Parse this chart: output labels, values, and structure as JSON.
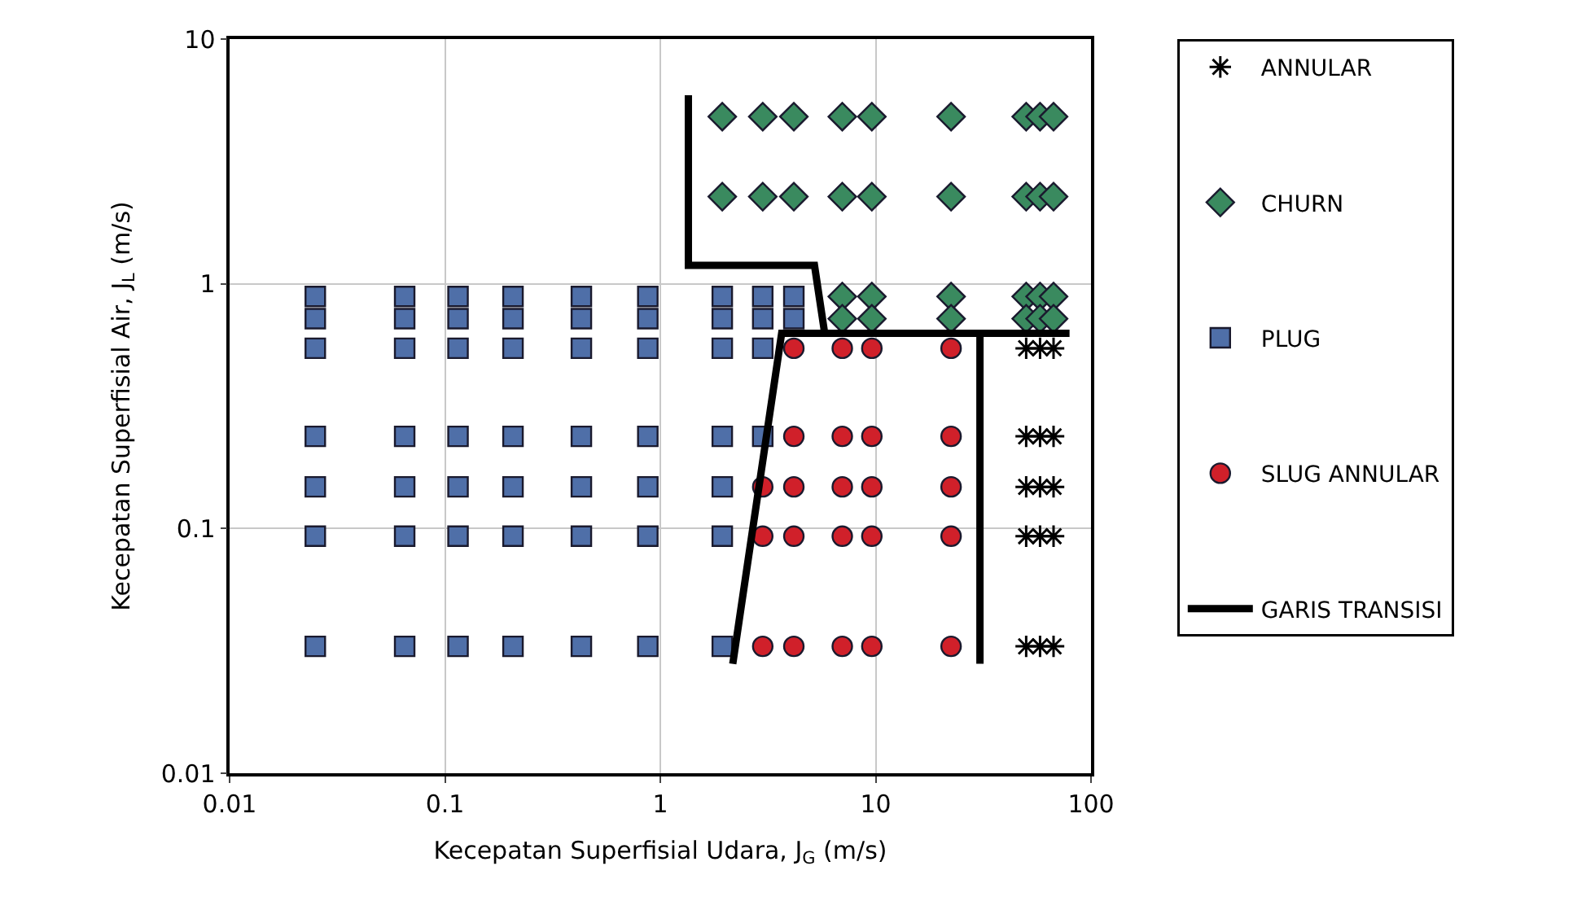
{
  "chart_data": {
    "type": "scatter",
    "xlabel": "Kecepatan Superfisial Udara, J$_{G}$ (m/s)",
    "ylabel": "Kecepatan Superfisial Air, J$_{L}$ (m/s)",
    "log": "xy",
    "grid": true,
    "legend": "right",
    "xlim": [
      0.01,
      100
    ],
    "xticks": [
      0.01,
      0.1,
      1,
      10,
      100
    ],
    "ylim": [
      0.01,
      10
    ],
    "yticks": [
      0.01,
      0.1,
      1,
      10
    ],
    "series": [
      {
        "name": "ANNULAR",
        "color": "#000000",
        "marker": "cross",
        "x": [
          50,
          58,
          67,
          50,
          58,
          67,
          50,
          58,
          67,
          50,
          58,
          67,
          50,
          58,
          67
        ],
        "values": [
          0.545,
          0.545,
          0.545,
          0.238,
          0.238,
          0.238,
          0.148,
          0.148,
          0.148,
          0.093,
          0.093,
          0.093,
          0.033,
          0.033,
          0.033
        ]
      },
      {
        "name": "CHURN",
        "color": "#3a8a5f",
        "marker": "diamond",
        "x": [
          1.94,
          2.99,
          4.17,
          7,
          9.6,
          22.4,
          50,
          58,
          67,
          1.94,
          2.99,
          4.17,
          7,
          9.6,
          22.4,
          50,
          58,
          67,
          7,
          9.6,
          22.4,
          50,
          58,
          67,
          7,
          9.6,
          22.4,
          50,
          58,
          67
        ],
        "values": [
          4.82,
          4.82,
          4.82,
          4.82,
          4.82,
          4.82,
          4.82,
          4.82,
          4.82,
          2.27,
          2.27,
          2.27,
          2.27,
          2.27,
          2.27,
          2.27,
          2.27,
          2.27,
          0.887,
          0.887,
          0.887,
          0.887,
          0.887,
          0.887,
          0.72,
          0.72,
          0.72,
          0.72,
          0.72,
          0.72
        ]
      },
      {
        "name": "PLUG",
        "color": "#4f6fa8",
        "marker": "square",
        "x": [
          0.025,
          0.065,
          0.115,
          0.207,
          0.43,
          0.875,
          1.94,
          2.99,
          4.17,
          0.025,
          0.065,
          0.115,
          0.207,
          0.43,
          0.875,
          1.94,
          2.99,
          4.17,
          0.025,
          0.065,
          0.115,
          0.207,
          0.43,
          0.875,
          1.94,
          2.99,
          0.025,
          0.065,
          0.115,
          0.207,
          0.43,
          0.875,
          1.94,
          2.99,
          0.025,
          0.065,
          0.115,
          0.207,
          0.43,
          0.875,
          1.94,
          0.025,
          0.065,
          0.115,
          0.207,
          0.43,
          0.875,
          1.94,
          0.025,
          0.065,
          0.115,
          0.207,
          0.43,
          0.875,
          1.94
        ],
        "values": [
          0.887,
          0.887,
          0.887,
          0.887,
          0.887,
          0.887,
          0.887,
          0.887,
          0.887,
          0.72,
          0.72,
          0.72,
          0.72,
          0.72,
          0.72,
          0.72,
          0.72,
          0.72,
          0.545,
          0.545,
          0.545,
          0.545,
          0.545,
          0.545,
          0.545,
          0.545,
          0.238,
          0.238,
          0.238,
          0.238,
          0.238,
          0.238,
          0.238,
          0.238,
          0.148,
          0.148,
          0.148,
          0.148,
          0.148,
          0.148,
          0.148,
          0.093,
          0.093,
          0.093,
          0.093,
          0.093,
          0.093,
          0.093,
          0.033,
          0.033,
          0.033,
          0.033,
          0.033,
          0.033,
          0.033
        ]
      },
      {
        "name": "SLUG ANNULAR",
        "color": "#d0202a",
        "marker": "circle",
        "x": [
          4.17,
          7,
          9.6,
          22.4,
          4.17,
          7,
          9.6,
          22.4,
          2.99,
          4.17,
          7,
          9.6,
          22.4,
          2.99,
          4.17,
          7,
          9.6,
          22.4,
          2.99,
          4.17,
          7,
          9.6,
          22.4
        ],
        "values": [
          0.545,
          0.545,
          0.545,
          0.545,
          0.238,
          0.238,
          0.238,
          0.238,
          0.148,
          0.148,
          0.148,
          0.148,
          0.148,
          0.093,
          0.093,
          0.093,
          0.093,
          0.093,
          0.033,
          0.033,
          0.033,
          0.033,
          0.033
        ]
      },
      {
        "name": "GARIS TRANSISI",
        "color": "#000000",
        "type": "line",
        "marker": "none",
        "line_style": "solid",
        "x": [
          1.35,
          1.35,
          5.2,
          5.8,
          null,
          2.17,
          3.66,
          79.5,
          null,
          30.5,
          30.5
        ],
        "values": [
          5.9,
          1.19,
          1.19,
          0.627,
          null,
          0.028,
          0.627,
          0.627,
          null,
          0.627,
          0.028
        ]
      }
    ]
  }
}
